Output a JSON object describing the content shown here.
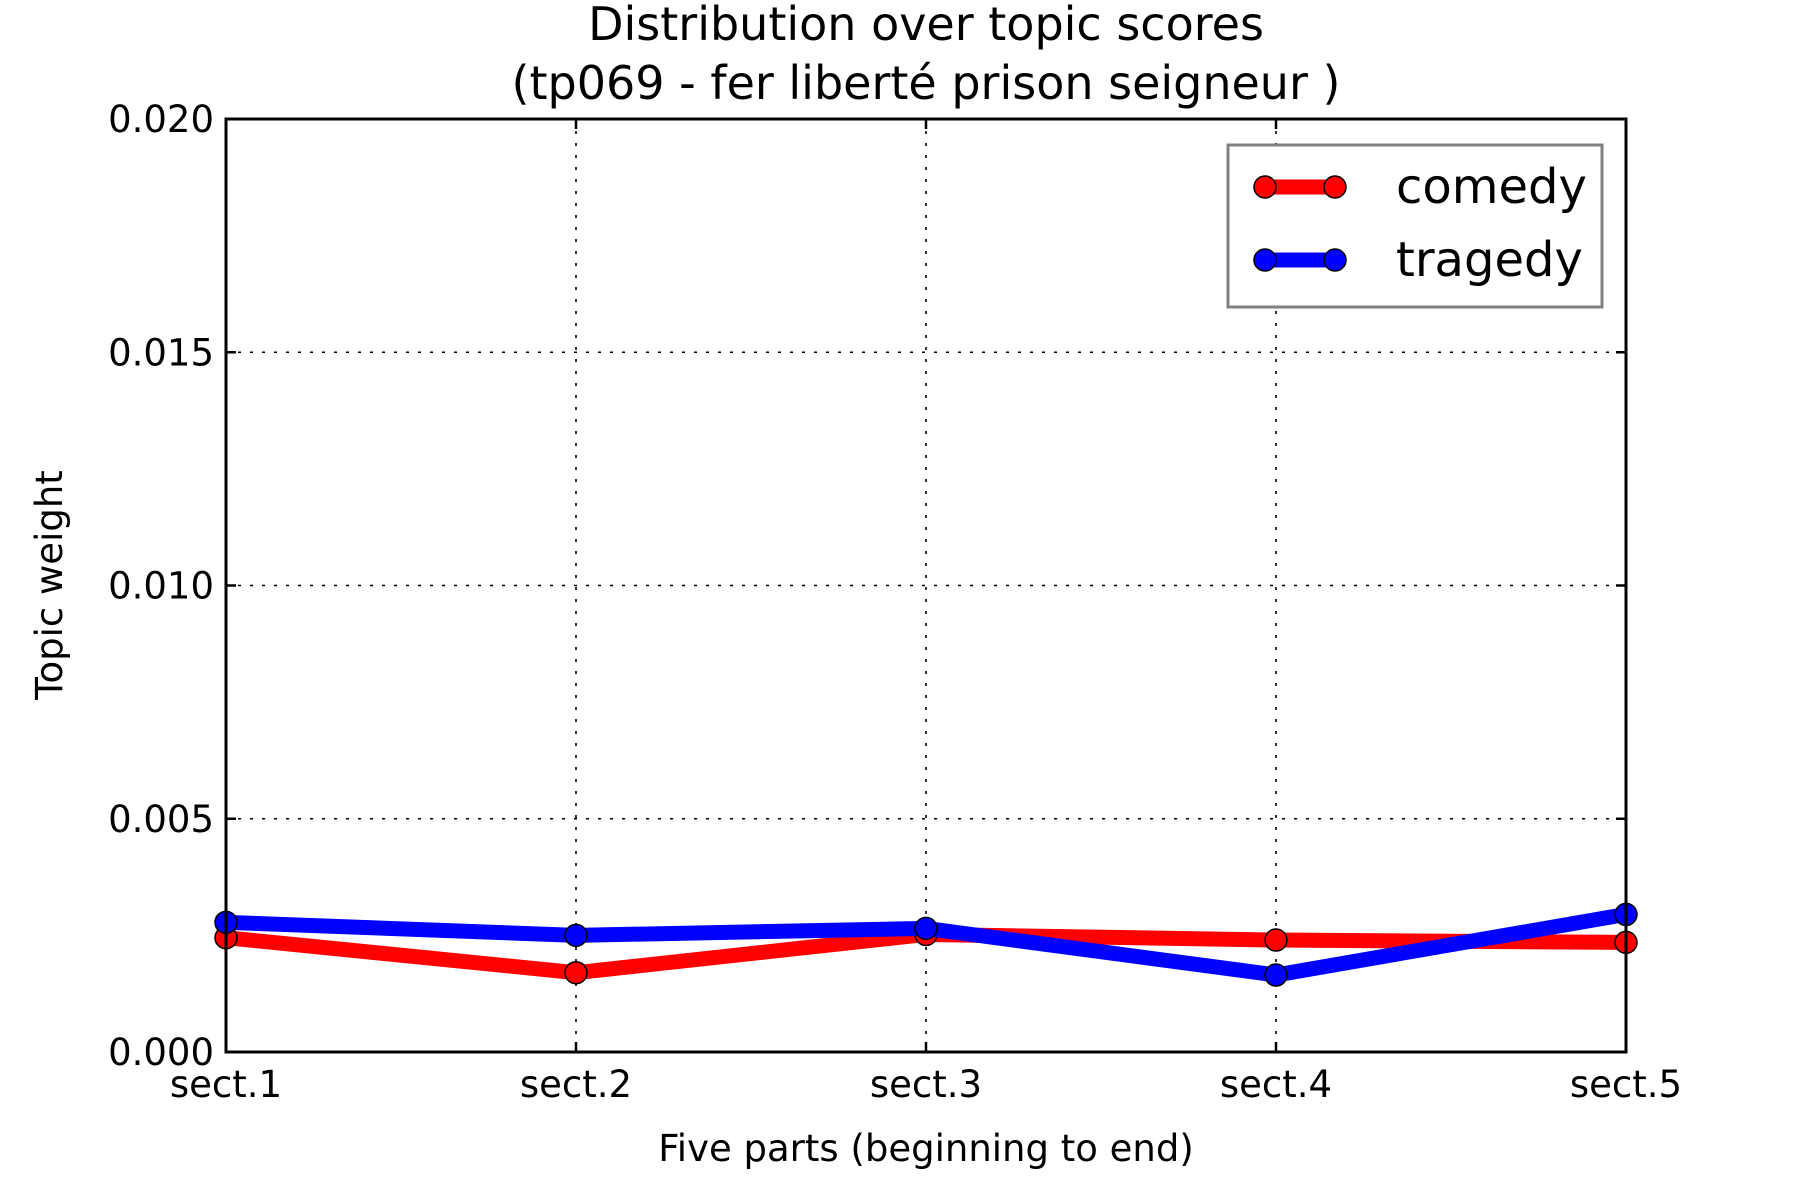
{
  "chart_data": {
    "type": "line",
    "title": "Distribution over topic scores",
    "subtitle": "(tp069 - fer liberté prison seigneur )",
    "xlabel": "Five parts (beginning to end)",
    "ylabel": "Topic weight",
    "categories": [
      "sect.1",
      "sect.2",
      "sect.3",
      "sect.4",
      "sect.5"
    ],
    "ylim": [
      0,
      0.02
    ],
    "yticks": [
      "0.000",
      "0.005",
      "0.010",
      "0.015",
      "0.020"
    ],
    "grid": true,
    "legend_position": "top-right",
    "series": [
      {
        "name": "comedy",
        "color": "#ff0000",
        "values": [
          0.00245,
          0.0017,
          0.00252,
          0.0024,
          0.00235
        ]
      },
      {
        "name": "tragedy",
        "color": "#0000ff",
        "values": [
          0.00278,
          0.0025,
          0.00265,
          0.00165,
          0.00295
        ]
      }
    ]
  }
}
